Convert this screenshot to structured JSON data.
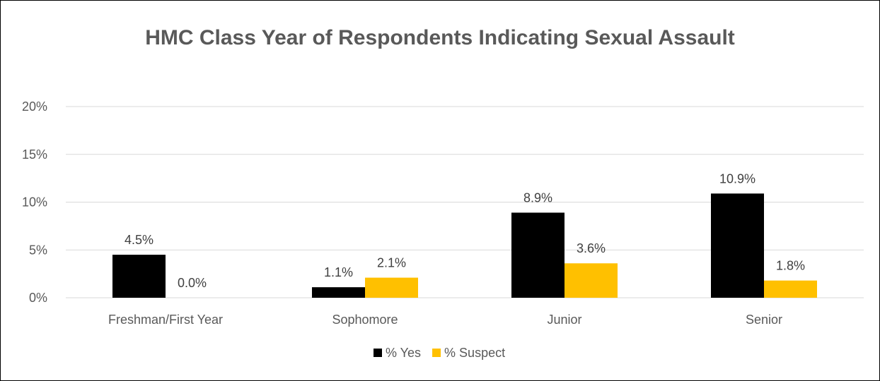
{
  "chart_data": {
    "type": "bar",
    "title": "HMC Class Year of Respondents Indicating Sexual Assault",
    "xlabel": "",
    "ylabel": "",
    "categories": [
      "Freshman/First Year",
      "Sophomore",
      "Junior",
      "Senior"
    ],
    "series": [
      {
        "name": "% Yes",
        "values": [
          4.5,
          1.1,
          8.9,
          10.9
        ],
        "labels": [
          "4.5%",
          "1.1%",
          "8.9%",
          "10.9%"
        ],
        "color": "#000000"
      },
      {
        "name": "% Suspect",
        "values": [
          0.0,
          2.1,
          3.6,
          1.8
        ],
        "labels": [
          "0.0%",
          "2.1%",
          "3.6%",
          "1.8%"
        ],
        "color": "#FFC000"
      }
    ],
    "ylim": [
      0,
      20
    ],
    "yticks": [
      0,
      5,
      10,
      15,
      20
    ],
    "ytick_labels": [
      "0%",
      "5%",
      "10%",
      "15%",
      "20%"
    ],
    "grid": true,
    "legend_position": "bottom",
    "colors": {
      "gridline": "#D9D9D9",
      "text": "#595959",
      "title": "#595959"
    }
  }
}
